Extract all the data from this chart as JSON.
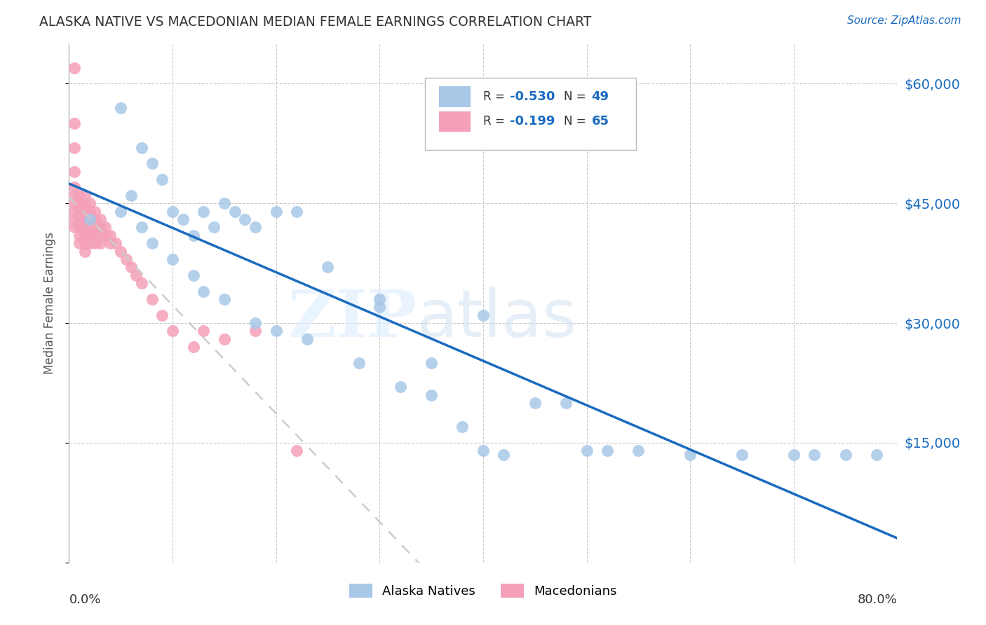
{
  "title": "ALASKA NATIVE VS MACEDONIAN MEDIAN FEMALE EARNINGS CORRELATION CHART",
  "source": "Source: ZipAtlas.com",
  "ylabel": "Median Female Earnings",
  "xlim": [
    0.0,
    0.8
  ],
  "ylim": [
    0,
    65000
  ],
  "yticks": [
    0,
    15000,
    30000,
    45000,
    60000
  ],
  "ytick_labels": [
    "",
    "$15,000",
    "$30,000",
    "$45,000",
    "$60,000"
  ],
  "alaska_R": -0.53,
  "alaska_N": 49,
  "macedonian_R": -0.199,
  "macedonian_N": 65,
  "alaska_color": "#a8c8e8",
  "macedonian_color": "#f4a0b8",
  "alaska_line_color": "#1a6bbf",
  "macedonian_line_color": "#cccccc",
  "background_color": "#ffffff",
  "grid_color": "#cccccc",
  "alaska_scatter_x": [
    0.02,
    0.05,
    0.07,
    0.08,
    0.09,
    0.05,
    0.06,
    0.07,
    0.08,
    0.1,
    0.11,
    0.12,
    0.13,
    0.14,
    0.15,
    0.16,
    0.17,
    0.18,
    0.2,
    0.22,
    0.1,
    0.12,
    0.13,
    0.15,
    0.18,
    0.2,
    0.23,
    0.25,
    0.28,
    0.3,
    0.32,
    0.35,
    0.38,
    0.4,
    0.45,
    0.5,
    0.55,
    0.6,
    0.65,
    0.7,
    0.72,
    0.75,
    0.78,
    0.3,
    0.35,
    0.4,
    0.42,
    0.48,
    0.52
  ],
  "alaska_scatter_y": [
    43000,
    57000,
    52000,
    50000,
    48000,
    44000,
    46000,
    42000,
    40000,
    44000,
    43000,
    41000,
    44000,
    42000,
    45000,
    44000,
    43000,
    42000,
    44000,
    44000,
    38000,
    36000,
    34000,
    33000,
    30000,
    29000,
    28000,
    37000,
    25000,
    33000,
    22000,
    21000,
    17000,
    14000,
    20000,
    14000,
    14000,
    13500,
    13500,
    13500,
    13500,
    13500,
    13500,
    32000,
    25000,
    31000,
    13500,
    20000,
    14000
  ],
  "macedonian_scatter_x": [
    0.005,
    0.005,
    0.005,
    0.005,
    0.005,
    0.005,
    0.005,
    0.005,
    0.005,
    0.005,
    0.01,
    0.01,
    0.01,
    0.01,
    0.01,
    0.01,
    0.01,
    0.01,
    0.01,
    0.01,
    0.015,
    0.015,
    0.015,
    0.015,
    0.015,
    0.015,
    0.015,
    0.015,
    0.015,
    0.015,
    0.02,
    0.02,
    0.02,
    0.02,
    0.02,
    0.02,
    0.02,
    0.02,
    0.025,
    0.025,
    0.025,
    0.025,
    0.025,
    0.03,
    0.03,
    0.03,
    0.03,
    0.035,
    0.035,
    0.04,
    0.04,
    0.045,
    0.05,
    0.055,
    0.06,
    0.065,
    0.07,
    0.08,
    0.09,
    0.1,
    0.12,
    0.13,
    0.15,
    0.18,
    0.22
  ],
  "macedonian_scatter_y": [
    62000,
    55000,
    52000,
    49000,
    47000,
    46000,
    45000,
    44000,
    43000,
    42000,
    46000,
    45000,
    44000,
    44000,
    43000,
    43000,
    42000,
    42000,
    41000,
    40000,
    46000,
    45000,
    44000,
    44000,
    43000,
    43000,
    42000,
    41000,
    40000,
    39000,
    45000,
    44000,
    44000,
    43000,
    43000,
    42000,
    41000,
    40000,
    44000,
    43000,
    42000,
    41000,
    40000,
    43000,
    42000,
    41000,
    40000,
    42000,
    41000,
    41000,
    40000,
    40000,
    39000,
    38000,
    37000,
    36000,
    35000,
    33000,
    31000,
    29000,
    27000,
    29000,
    28000,
    29000,
    14000
  ]
}
